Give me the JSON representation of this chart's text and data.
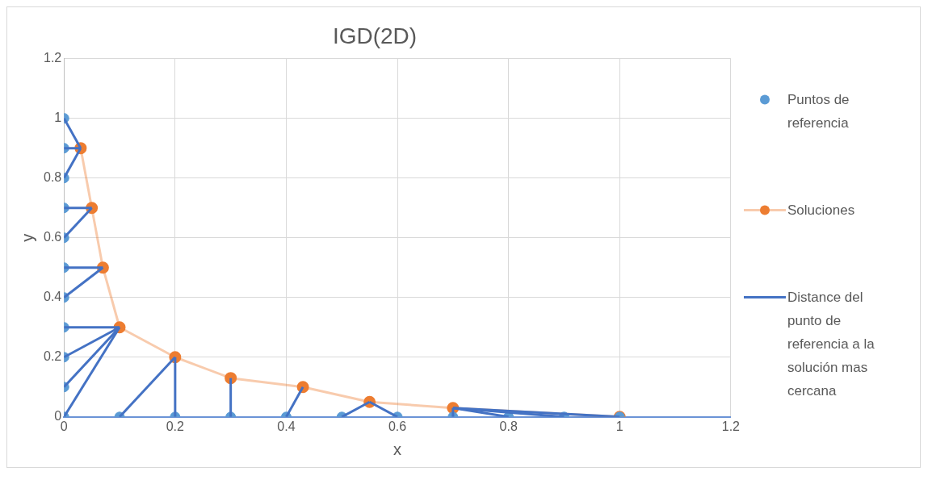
{
  "chart_data": {
    "type": "scatter",
    "title": "IGD(2D)",
    "xlabel": "x",
    "ylabel": "y",
    "xlim": [
      0,
      1.2
    ],
    "xticks": [
      0,
      0.2,
      0.4,
      0.6,
      0.8,
      1,
      1.2
    ],
    "ylim": [
      0,
      1.2
    ],
    "yticks": [
      0,
      0.2,
      0.4,
      0.6,
      0.8,
      1,
      1.2
    ],
    "grid": true,
    "legend": "right",
    "marker": "circle",
    "series": [
      {
        "name": "Puntos de referencia",
        "color": "#5b9bd5",
        "x": [
          0,
          0,
          0,
          0,
          0,
          0,
          0,
          0,
          0,
          0,
          0,
          0.1,
          0.2,
          0.3,
          0.4,
          0.5,
          0.6,
          0.7,
          0.8,
          0.9,
          1
        ],
        "values": [
          1,
          0.9,
          0.8,
          0.7,
          0.6,
          0.5,
          0.4,
          0.3,
          0.2,
          0.1,
          0,
          0,
          0,
          0,
          0,
          0,
          0,
          0,
          0,
          0,
          0
        ]
      },
      {
        "name": "Soluciones",
        "type": "line",
        "color": "#ed7d31",
        "x": [
          0.03,
          0.05,
          0.07,
          0.1,
          0.2,
          0.3,
          0.43,
          0.55,
          0.7,
          1
        ],
        "values": [
          0.9,
          0.7,
          0.5,
          0.3,
          0.2,
          0.13,
          0.1,
          0.05,
          0.03,
          0
        ]
      },
      {
        "name": "Distance del punto de referencia a la solución mas cercana",
        "type": "line",
        "marker": "none",
        "color": "#4472c4",
        "x": [
          0,
          0.03
        ],
        "values": [
          1,
          0.9
        ]
      },
      {
        "type": "line",
        "marker": "none",
        "color": "#4472c4",
        "x": [
          0,
          0.03
        ],
        "values": [
          0.9,
          0.9
        ]
      },
      {
        "type": "line",
        "marker": "none",
        "color": "#4472c4",
        "x": [
          0,
          0.03
        ],
        "values": [
          0.8,
          0.9
        ]
      },
      {
        "type": "line",
        "marker": "none",
        "color": "#4472c4",
        "x": [
          0,
          0.05
        ],
        "values": [
          0.7,
          0.7
        ]
      },
      {
        "type": "line",
        "marker": "none",
        "color": "#4472c4",
        "x": [
          0,
          0.05
        ],
        "values": [
          0.6,
          0.7
        ]
      },
      {
        "type": "line",
        "marker": "none",
        "color": "#4472c4",
        "x": [
          0,
          0.07
        ],
        "values": [
          0.5,
          0.5
        ]
      },
      {
        "type": "line",
        "marker": "none",
        "color": "#4472c4",
        "x": [
          0,
          0.07
        ],
        "values": [
          0.4,
          0.5
        ]
      },
      {
        "type": "line",
        "marker": "none",
        "color": "#4472c4",
        "x": [
          0,
          0.1
        ],
        "values": [
          0.3,
          0.3
        ]
      },
      {
        "type": "line",
        "marker": "none",
        "color": "#4472c4",
        "x": [
          0,
          0.1
        ],
        "values": [
          0.2,
          0.3
        ]
      },
      {
        "type": "line",
        "marker": "none",
        "color": "#4472c4",
        "x": [
          0,
          0.1
        ],
        "values": [
          0.1,
          0.3
        ]
      },
      {
        "type": "line",
        "marker": "none",
        "color": "#4472c4",
        "x": [
          0,
          0.1
        ],
        "values": [
          0,
          0.3
        ]
      },
      {
        "type": "line",
        "marker": "none",
        "color": "#4472c4",
        "x": [
          0.1,
          0.2
        ],
        "values": [
          0,
          0.2
        ]
      },
      {
        "type": "line",
        "marker": "none",
        "color": "#4472c4",
        "x": [
          0.2,
          0.2
        ],
        "values": [
          0,
          0.2
        ]
      },
      {
        "type": "line",
        "marker": "none",
        "color": "#4472c4",
        "x": [
          0.3,
          0.3
        ],
        "values": [
          0,
          0.13
        ]
      },
      {
        "type": "line",
        "marker": "none",
        "color": "#4472c4",
        "x": [
          0.4,
          0.43
        ],
        "values": [
          0,
          0.1
        ]
      },
      {
        "type": "line",
        "marker": "none",
        "color": "#4472c4",
        "x": [
          0.5,
          0.55
        ],
        "values": [
          0,
          0.05
        ]
      },
      {
        "type": "line",
        "marker": "none",
        "color": "#4472c4",
        "x": [
          0.6,
          0.55
        ],
        "values": [
          0,
          0.05
        ]
      },
      {
        "type": "line",
        "marker": "none",
        "color": "#4472c4",
        "x": [
          0.7,
          0.7
        ],
        "values": [
          0,
          0.03
        ]
      },
      {
        "type": "line",
        "marker": "none",
        "color": "#4472c4",
        "x": [
          0.8,
          0.7
        ],
        "values": [
          0,
          0.03
        ]
      },
      {
        "type": "line",
        "marker": "none",
        "color": "#4472c4",
        "x": [
          0.9,
          0.7
        ],
        "values": [
          0,
          0.03
        ]
      },
      {
        "type": "line",
        "marker": "none",
        "color": "#4472c4",
        "x": [
          1,
          0.7
        ],
        "values": [
          0,
          0.03
        ]
      }
    ]
  }
}
